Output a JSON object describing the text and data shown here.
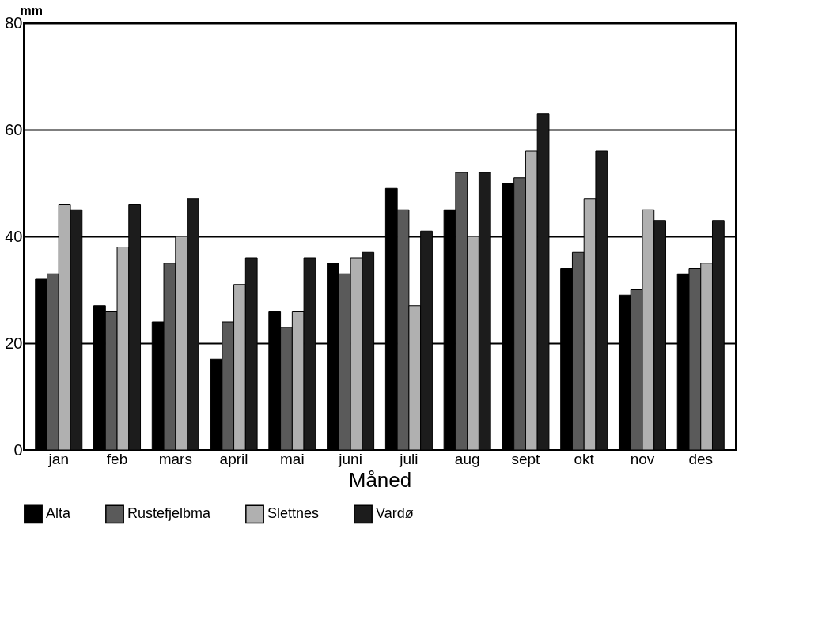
{
  "chart_data": {
    "type": "bar",
    "ylabel": "mm",
    "xlabel": "Måned",
    "categories": [
      "jan",
      "feb",
      "mars",
      "april",
      "mai",
      "juni",
      "juli",
      "aug",
      "sept",
      "okt",
      "nov",
      "des"
    ],
    "series": [
      {
        "name": "Alta",
        "color": "#000000",
        "values": [
          32,
          27,
          24,
          17,
          26,
          35,
          49,
          45,
          50,
          34,
          29,
          33
        ]
      },
      {
        "name": "Rustefjelbma",
        "color": "#5a5a5a",
        "values": [
          33,
          26,
          35,
          24,
          23,
          33,
          45,
          52,
          51,
          37,
          30,
          34
        ]
      },
      {
        "name": "Slettnes",
        "color": "#b0b0b0",
        "values": [
          46,
          38,
          40,
          31,
          26,
          36,
          27,
          40,
          56,
          47,
          45,
          35
        ]
      },
      {
        "name": "Vardø",
        "color": "#1c1c1c",
        "values": [
          45,
          46,
          47,
          36,
          36,
          37,
          41,
          52,
          63,
          56,
          43,
          43
        ]
      }
    ],
    "ylim": [
      0,
      80
    ],
    "yticks": [
      0,
      20,
      40,
      60,
      80
    ],
    "grid": "y",
    "legend": "bottom"
  }
}
